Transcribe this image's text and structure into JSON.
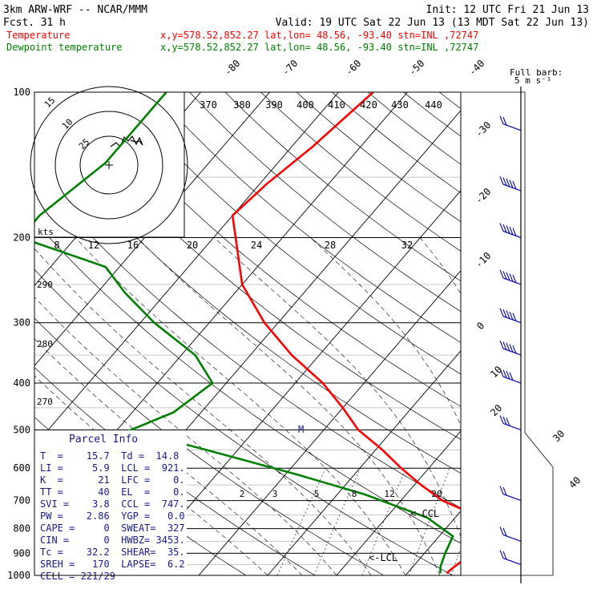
{
  "header": {
    "model": "3km ARW-WRF -- NCAR/MMM",
    "init": "Init: 12 UTC Fri 21 Jun 13",
    "fcst_label": "Fcst.",
    "fcst_value": "31 h",
    "valid": "Valid: 19 UTC Sat 22 Jun 13 (13 MDT Sat 22 Jun 13)",
    "temp_label": "Temperature",
    "dew_label": "Dewpoint temperature",
    "loc_text": "x,y=578.52,852.27   lat,lon= 48.56, -93.40   stn=INL ,72747"
  },
  "barb_legend": {
    "line1": "Full barb:",
    "line2": "5 m s⁻¹"
  },
  "pressure_levels": [
    "100",
    "200",
    "300",
    "400",
    "500",
    "600",
    "700",
    "800",
    "900",
    "1000"
  ],
  "isotherm_labels": [
    "-80",
    "-70",
    "-60",
    "-50",
    "-40",
    "-30",
    "-20",
    "-10",
    "0",
    "10",
    "20",
    "30",
    "40"
  ],
  "theta_labels": [
    "370",
    "380",
    "390",
    "400",
    "410",
    "420",
    "430",
    "440"
  ],
  "theta_low_labels": [
    "290",
    "280",
    "270"
  ],
  "mixing_ratio_labels": [
    "2",
    "3",
    "5",
    "8",
    "12",
    "20"
  ],
  "hodograph": {
    "rings": [
      "15",
      "10",
      "25"
    ],
    "unit": "kts",
    "scale": [
      "8",
      "12",
      "16",
      "20",
      "24",
      "28",
      "32"
    ]
  },
  "parcel_info": {
    "title": "Parcel Info",
    "rows": [
      "T  =    15.7  Td =  14.8",
      "LI =     5.9  LCL =  921.",
      "K  =      21  LFC =    0.",
      "TT =      40  EL  =    0.",
      "SVI =    3.8  CCL =  747.",
      "PW =    2.86  YGP =   0.0",
      "CAPE =     0  SWEAT=  327",
      "CIN =      0  HWBZ= 3453.",
      "Tc =    32.2  SHEAR=  35.",
      "SREH =   170  LAPSE=  6.2",
      "CELL = 221/29"
    ]
  },
  "annotations": {
    "ccl": "<-CCL",
    "lcl": "<-LCL",
    "m": "M"
  },
  "colors": {
    "temperature": "#ff0000",
    "dewpoint": "#008000",
    "isotherm": "#000000",
    "wind": "#0000aa"
  },
  "chart_data": {
    "type": "line",
    "xlabel": "",
    "ylabel": "",
    "series": [
      {
        "name": "Temperature",
        "pressure": [
          100,
          130,
          155,
          180,
          250,
          300,
          350,
          400,
          450,
          500,
          550,
          600,
          650,
          700,
          730,
          760,
          800,
          850,
          900,
          960,
          990
        ],
        "temperature": [
          -55,
          -57,
          -59,
          -60,
          -50,
          -42,
          -34,
          -26,
          -20,
          -15,
          -9,
          -4,
          1,
          6,
          10,
          13,
          14,
          15,
          17,
          16,
          15.7
        ]
      },
      {
        "name": "Dewpoint temperature",
        "pressure": [
          100,
          140,
          180,
          200,
          230,
          260,
          300,
          350,
          400,
          460,
          500,
          560,
          620,
          680,
          760,
          830,
          900,
          960,
          990
        ],
        "dewpoint": [
          -85,
          -85,
          -88,
          -88,
          -72,
          -66,
          -58,
          -48,
          -42,
          -44,
          -48,
          -32,
          -18,
          -6,
          6,
          12,
          13,
          14,
          14.8
        ]
      }
    ],
    "wind_barbs": [
      {
        "p": 120,
        "speed_ms": 10
      },
      {
        "p": 160,
        "speed_ms": 25
      },
      {
        "p": 200,
        "speed_ms": 40
      },
      {
        "p": 250,
        "speed_ms": 35
      },
      {
        "p": 300,
        "speed_ms": 30
      },
      {
        "p": 350,
        "speed_ms": 25
      },
      {
        "p": 400,
        "speed_ms": 20
      },
      {
        "p": 500,
        "speed_ms": 15
      },
      {
        "p": 700,
        "speed_ms": 10
      },
      {
        "p": 850,
        "speed_ms": 10
      },
      {
        "p": 950,
        "speed_ms": 10
      }
    ]
  }
}
